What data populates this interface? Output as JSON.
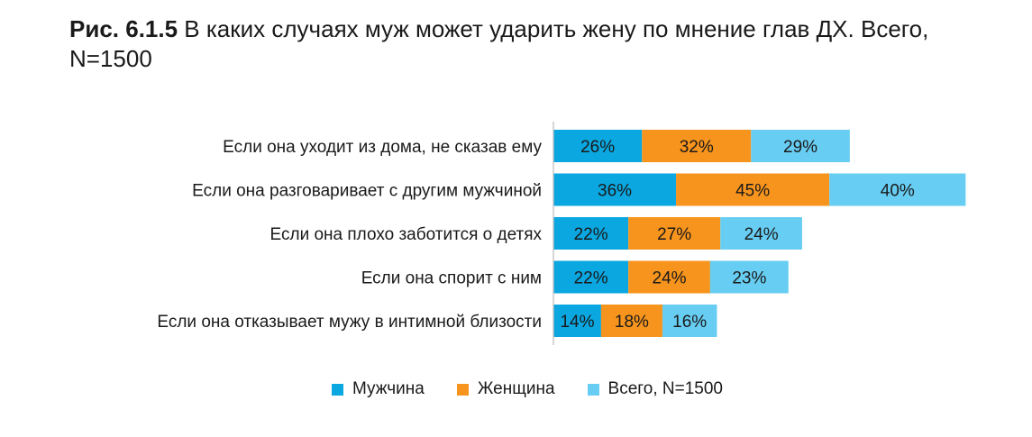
{
  "figure": {
    "number": "Рис. 6.1.5",
    "caption": "В каких случаях муж может ударить жену по мнение глав ДХ. Всего, N=1500"
  },
  "chart_data": {
    "type": "bar",
    "orientation": "horizontal",
    "stacked": true,
    "categories": [
      "Если она уходит из дома, не сказав ему",
      "Если она разговаривает с другим мужчиной",
      "Если она плохо заботится о детях",
      "Если она спорит с ним",
      "Если она отказывает мужу в интимной близости"
    ],
    "series": [
      {
        "name": "Мужчина",
        "color": "#0aa7e1",
        "values": [
          26,
          36,
          22,
          22,
          14
        ]
      },
      {
        "name": "Женщина",
        "color": "#f7941d",
        "values": [
          32,
          45,
          27,
          24,
          18
        ]
      },
      {
        "name": "Всего, N=1500",
        "color": "#67cdf2",
        "values": [
          29,
          40,
          24,
          23,
          16
        ]
      }
    ],
    "value_suffix": "%",
    "legend_position": "bottom",
    "grid": false
  }
}
